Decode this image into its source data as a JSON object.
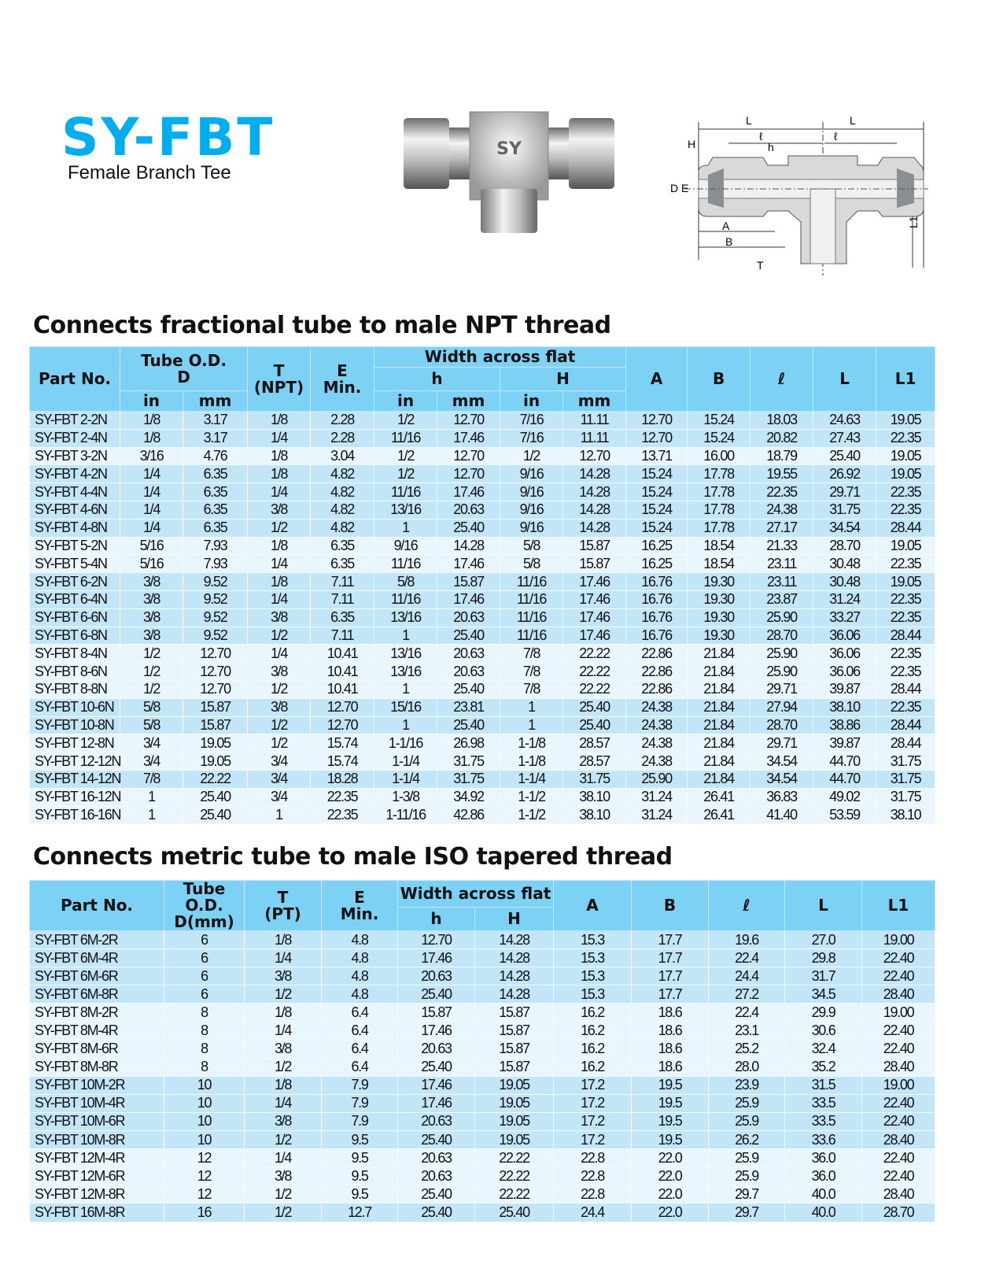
{
  "header": {
    "title": "SY-FBT",
    "subtitle": "Female Branch Tee",
    "photo_brand": "SY"
  },
  "diagram": {
    "labels": {
      "L": "L",
      "l": "ℓ",
      "h": "h",
      "H": "H",
      "D": "D",
      "E": "E",
      "A": "A",
      "B": "B",
      "T": "T",
      "L1": "L1"
    }
  },
  "colors": {
    "title": "#00aeef",
    "header_bg": "#7dd1f5",
    "row_dark": "#c2e6f8",
    "row_light": "#e9f6fd"
  },
  "section1": {
    "heading": "Connects fractional tube to male NPT thread",
    "headers": {
      "part": "Part No.",
      "tube": "Tube O.D.",
      "tube_d": "D",
      "t": "T",
      "t_sub": "(NPT)",
      "e": "E",
      "e_sub": "Min.",
      "waf": "Width across flat",
      "h": "h",
      "H": "H",
      "in": "in",
      "mm": "mm",
      "A": "A",
      "B": "B",
      "l": "ℓ",
      "L": "L",
      "L1": "L1"
    },
    "rows": [
      [
        "SY-FBT 2-2N",
        "1/8",
        "3.17",
        "1/8",
        "2.28",
        "1/2",
        "12.70",
        "7/16",
        "11.11",
        "12.70",
        "15.24",
        "18.03",
        "24.63",
        "19.05"
      ],
      [
        "SY-FBT 2-4N",
        "1/8",
        "3.17",
        "1/4",
        "2.28",
        "11/16",
        "17.46",
        "7/16",
        "11.11",
        "12.70",
        "15.24",
        "20.82",
        "27.43",
        "22.35"
      ],
      [
        "SY-FBT 3-2N",
        "3/16",
        "4.76",
        "1/8",
        "3.04",
        "1/2",
        "12.70",
        "1/2",
        "12.70",
        "13.71",
        "16.00",
        "18.79",
        "25.40",
        "19.05"
      ],
      [
        "SY-FBT 4-2N",
        "1/4",
        "6.35",
        "1/8",
        "4.82",
        "1/2",
        "12.70",
        "9/16",
        "14.28",
        "15.24",
        "17.78",
        "19.55",
        "26.92",
        "19.05"
      ],
      [
        "SY-FBT 4-4N",
        "1/4",
        "6.35",
        "1/4",
        "4.82",
        "11/16",
        "17.46",
        "9/16",
        "14.28",
        "15.24",
        "17.78",
        "22.35",
        "29.71",
        "22.35"
      ],
      [
        "SY-FBT 4-6N",
        "1/4",
        "6.35",
        "3/8",
        "4.82",
        "13/16",
        "20.63",
        "9/16",
        "14.28",
        "15.24",
        "17.78",
        "24.38",
        "31.75",
        "22.35"
      ],
      [
        "SY-FBT 4-8N",
        "1/4",
        "6.35",
        "1/2",
        "4.82",
        "1",
        "25.40",
        "9/16",
        "14.28",
        "15.24",
        "17.78",
        "27.17",
        "34.54",
        "28.44"
      ],
      [
        "SY-FBT 5-2N",
        "5/16",
        "7.93",
        "1/8",
        "6.35",
        "9/16",
        "14.28",
        "5/8",
        "15.87",
        "16.25",
        "18.54",
        "21.33",
        "28.70",
        "19.05"
      ],
      [
        "SY-FBT 5-4N",
        "5/16",
        "7.93",
        "1/4",
        "6.35",
        "11/16",
        "17.46",
        "5/8",
        "15.87",
        "16.25",
        "18.54",
        "23.11",
        "30.48",
        "22.35"
      ],
      [
        "SY-FBT 6-2N",
        "3/8",
        "9.52",
        "1/8",
        "7.11",
        "5/8",
        "15.87",
        "11/16",
        "17.46",
        "16.76",
        "19.30",
        "23.11",
        "30.48",
        "19.05"
      ],
      [
        "SY-FBT 6-4N",
        "3/8",
        "9.52",
        "1/4",
        "7.11",
        "11/16",
        "17.46",
        "11/16",
        "17.46",
        "16.76",
        "19.30",
        "23.87",
        "31.24",
        "22.35"
      ],
      [
        "SY-FBT 6-6N",
        "3/8",
        "9.52",
        "3/8",
        "6.35",
        "13/16",
        "20.63",
        "11/16",
        "17.46",
        "16.76",
        "19.30",
        "25.90",
        "33.27",
        "22.35"
      ],
      [
        "SY-FBT 6-8N",
        "3/8",
        "9.52",
        "1/2",
        "7.11",
        "1",
        "25.40",
        "11/16",
        "17.46",
        "16.76",
        "19.30",
        "28.70",
        "36.06",
        "28.44"
      ],
      [
        "SY-FBT 8-4N",
        "1/2",
        "12.70",
        "1/4",
        "10.41",
        "13/16",
        "20.63",
        "7/8",
        "22.22",
        "22.86",
        "21.84",
        "25.90",
        "36.06",
        "22.35"
      ],
      [
        "SY-FBT 8-6N",
        "1/2",
        "12.70",
        "3/8",
        "10.41",
        "13/16",
        "20.63",
        "7/8",
        "22.22",
        "22.86",
        "21.84",
        "25.90",
        "36.06",
        "22.35"
      ],
      [
        "SY-FBT 8-8N",
        "1/2",
        "12.70",
        "1/2",
        "10.41",
        "1",
        "25.40",
        "7/8",
        "22.22",
        "22.86",
        "21.84",
        "29.71",
        "39.87",
        "28.44"
      ],
      [
        "SY-FBT 10-6N",
        "5/8",
        "15.87",
        "3/8",
        "12.70",
        "15/16",
        "23.81",
        "1",
        "25.40",
        "24.38",
        "21.84",
        "27.94",
        "38.10",
        "22.35"
      ],
      [
        "SY-FBT 10-8N",
        "5/8",
        "15.87",
        "1/2",
        "12.70",
        "1",
        "25.40",
        "1",
        "25.40",
        "24.38",
        "21.84",
        "28.70",
        "38.86",
        "28.44"
      ],
      [
        "SY-FBT 12-8N",
        "3/4",
        "19.05",
        "1/2",
        "15.74",
        "1-1/16",
        "26.98",
        "1-1/8",
        "28.57",
        "24.38",
        "21.84",
        "29.71",
        "39.87",
        "28.44"
      ],
      [
        "SY-FBT 12-12N",
        "3/4",
        "19.05",
        "3/4",
        "15.74",
        "1-1/4",
        "31.75",
        "1-1/8",
        "28.57",
        "24.38",
        "21.84",
        "34.54",
        "44.70",
        "31.75"
      ],
      [
        "SY-FBT 14-12N",
        "7/8",
        "22.22",
        "3/4",
        "18.28",
        "1-1/4",
        "31.75",
        "1-1/4",
        "31.75",
        "25.90",
        "21.84",
        "34.54",
        "44.70",
        "31.75"
      ],
      [
        "SY-FBT 16-12N",
        "1",
        "25.40",
        "3/4",
        "22.35",
        "1-3/8",
        "34.92",
        "1-1/2",
        "38.10",
        "31.24",
        "26.41",
        "36.83",
        "49.02",
        "31.75"
      ],
      [
        "SY-FBT 16-16N",
        "1",
        "25.40",
        "1",
        "22.35",
        "1-11/16",
        "42.86",
        "1-1/2",
        "38.10",
        "31.24",
        "26.41",
        "41.40",
        "53.59",
        "38.10"
      ]
    ]
  },
  "section2": {
    "heading": "Connects metric tube to male ISO tapered thread",
    "headers": {
      "part": "Part No.",
      "tube": "Tube O.D.",
      "tube_d": "D(mm)",
      "t": "T",
      "t_sub": "(PT)",
      "e": "E",
      "e_sub": "Min.",
      "waf": "Width across flat",
      "h": "h",
      "H": "H",
      "A": "A",
      "B": "B",
      "l": "ℓ",
      "L": "L",
      "L1": "L1"
    },
    "rows": [
      [
        "SY-FBT 6M-2R",
        "6",
        "1/8",
        "4.8",
        "12.70",
        "14.28",
        "15.3",
        "17.7",
        "19.6",
        "27.0",
        "19.00"
      ],
      [
        "SY-FBT 6M-4R",
        "6",
        "1/4",
        "4.8",
        "17.46",
        "14.28",
        "15.3",
        "17.7",
        "22.4",
        "29.8",
        "22.40"
      ],
      [
        "SY-FBT 6M-6R",
        "6",
        "3/8",
        "4.8",
        "20.63",
        "14.28",
        "15.3",
        "17.7",
        "24.4",
        "31.7",
        "22.40"
      ],
      [
        "SY-FBT 6M-8R",
        "6",
        "1/2",
        "4.8",
        "25.40",
        "14.28",
        "15.3",
        "17.7",
        "27.2",
        "34.5",
        "28.40"
      ],
      [
        "SY-FBT 8M-2R",
        "8",
        "1/8",
        "6.4",
        "15.87",
        "15.87",
        "16.2",
        "18.6",
        "22.4",
        "29.9",
        "19.00"
      ],
      [
        "SY-FBT 8M-4R",
        "8",
        "1/4",
        "6.4",
        "17.46",
        "15.87",
        "16.2",
        "18.6",
        "23.1",
        "30.6",
        "22.40"
      ],
      [
        "SY-FBT 8M-6R",
        "8",
        "3/8",
        "6.4",
        "20.63",
        "15.87",
        "16.2",
        "18.6",
        "25.2",
        "32.4",
        "22.40"
      ],
      [
        "SY-FBT 8M-8R",
        "8",
        "1/2",
        "6.4",
        "25.40",
        "15.87",
        "16.2",
        "18.6",
        "28.0",
        "35.2",
        "28.40"
      ],
      [
        "SY-FBT 10M-2R",
        "10",
        "1/8",
        "7.9",
        "17.46",
        "19.05",
        "17.2",
        "19.5",
        "23.9",
        "31.5",
        "19.00"
      ],
      [
        "SY-FBT 10M-4R",
        "10",
        "1/4",
        "7.9",
        "17.46",
        "19.05",
        "17.2",
        "19.5",
        "25.9",
        "33.5",
        "22.40"
      ],
      [
        "SY-FBT 10M-6R",
        "10",
        "3/8",
        "7.9",
        "20.63",
        "19.05",
        "17.2",
        "19.5",
        "25.9",
        "33.5",
        "22.40"
      ],
      [
        "SY-FBT 10M-8R",
        "10",
        "1/2",
        "9.5",
        "25.40",
        "19.05",
        "17.2",
        "19.5",
        "26.2",
        "33.6",
        "28.40"
      ],
      [
        "SY-FBT 12M-4R",
        "12",
        "1/4",
        "9.5",
        "20.63",
        "22.22",
        "22.8",
        "22.0",
        "25.9",
        "36.0",
        "22.40"
      ],
      [
        "SY-FBT 12M-6R",
        "12",
        "3/8",
        "9.5",
        "20.63",
        "22.22",
        "22.8",
        "22.0",
        "25.9",
        "36.0",
        "22.40"
      ],
      [
        "SY-FBT 12M-8R",
        "12",
        "1/2",
        "9.5",
        "25.40",
        "22.22",
        "22.8",
        "22.0",
        "29.7",
        "40.0",
        "28.40"
      ],
      [
        "SY-FBT 16M-8R",
        "16",
        "1/2",
        "12.7",
        "25.40",
        "25.40",
        "24.4",
        "22.0",
        "29.7",
        "40.0",
        "28.70"
      ]
    ]
  }
}
